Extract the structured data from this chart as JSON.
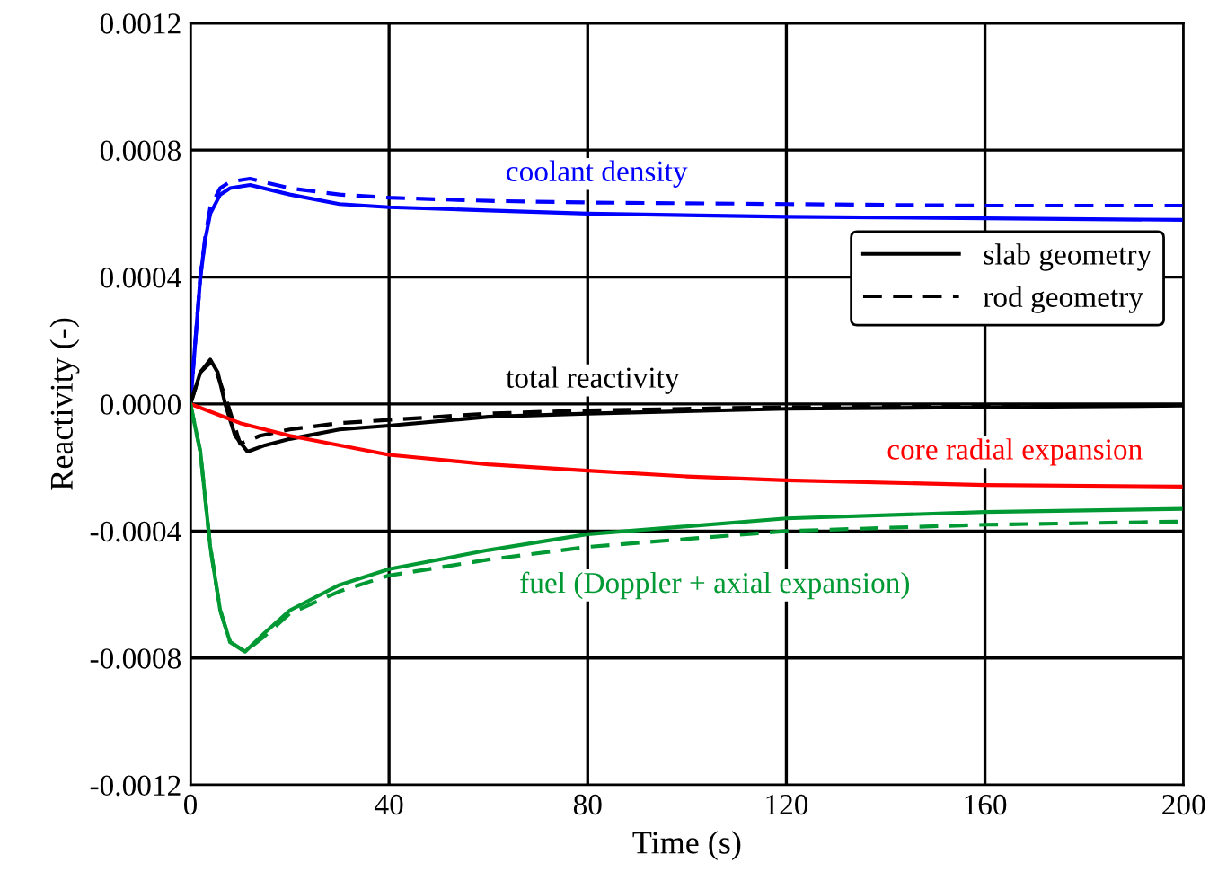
{
  "chart_data": {
    "type": "line",
    "xlabel": "Time (s)",
    "ylabel": "Reactivity (-)",
    "xlim": [
      0,
      200
    ],
    "xticks": [
      0,
      40,
      80,
      120,
      160,
      200
    ],
    "ylim": [
      -0.0012,
      0.0012
    ],
    "yticks": [
      {
        "value": -0.0012,
        "label": "-0.0012"
      },
      {
        "value": -0.0008,
        "label": "-0.0008"
      },
      {
        "value": -0.0004,
        "label": "-0.0004"
      },
      {
        "value": 0,
        "label": "0.0000"
      },
      {
        "value": 0.0004,
        "label": "0.0004"
      },
      {
        "value": 0.0008,
        "label": "0.0008"
      },
      {
        "value": 0.0012,
        "label": "0.0012"
      }
    ],
    "grid": true,
    "legend": "right",
    "marker": "none",
    "annotations": [
      "coolant density",
      "total reactivity",
      "core radial expansion",
      "fuel (Doppler + axial expansion)"
    ],
    "series": [
      {
        "color": "#0000ff",
        "line_style": "solid",
        "x": [
          0,
          1,
          2,
          3,
          4,
          6,
          8,
          12,
          20,
          30,
          40,
          60,
          80,
          120,
          160,
          200
        ],
        "values": [
          0,
          0.0002,
          0.0004,
          0.00052,
          0.0006,
          0.00066,
          0.00068,
          0.00069,
          0.00066,
          0.00063,
          0.00062,
          0.00061,
          0.0006,
          0.00059,
          0.000585,
          0.00058
        ]
      },
      {
        "color": "#0000ff",
        "line_style": "dashed",
        "x": [
          0,
          1,
          2,
          3,
          4,
          6,
          8,
          12,
          20,
          30,
          40,
          60,
          80,
          120,
          160,
          200
        ],
        "values": [
          0,
          0.0002,
          0.0004,
          0.00053,
          0.00062,
          0.00068,
          0.0007,
          0.00071,
          0.00068,
          0.00066,
          0.00065,
          0.00064,
          0.000635,
          0.00063,
          0.000625,
          0.000625
        ]
      },
      {
        "name": "slab geometry",
        "color": "#000000",
        "line_style": "solid",
        "x": [
          0,
          2,
          4,
          5.5,
          7,
          9,
          11.5,
          15,
          20,
          30,
          40,
          60,
          80,
          120,
          160,
          200
        ],
        "values": [
          0,
          0.0001,
          0.00014,
          0.0001,
          0,
          -0.0001,
          -0.00015,
          -0.00013,
          -0.00011,
          -8e-05,
          -6.8e-05,
          -4e-05,
          -3e-05,
          -1.5e-05,
          -1e-05,
          -5e-06
        ]
      },
      {
        "name": "rod geometry",
        "color": "#000000",
        "line_style": "dashed",
        "x": [
          0,
          2,
          4,
          5.5,
          7.5,
          10,
          14,
          20,
          30,
          40,
          60,
          80,
          120,
          160,
          200
        ],
        "values": [
          0,
          0.0001,
          0.00013,
          9e-05,
          0,
          -0.000125,
          -0.0001,
          -8e-05,
          -6e-05,
          -5e-05,
          -3e-05,
          -2e-05,
          -1e-05,
          -5e-06,
          -3e-06
        ]
      },
      {
        "color": "#ff0000",
        "line_style": "solid",
        "x": [
          0,
          5,
          10,
          20,
          40,
          60,
          80,
          100,
          120,
          160,
          200
        ],
        "values": [
          0,
          -3e-05,
          -6e-05,
          -0.0001,
          -0.00016,
          -0.00019,
          -0.00021,
          -0.000228,
          -0.00024,
          -0.000255,
          -0.00026
        ]
      },
      {
        "color": "#009933",
        "line_style": "solid",
        "x": [
          0,
          2,
          4,
          6,
          8,
          11,
          15,
          20,
          30,
          40,
          60,
          80,
          120,
          160,
          200
        ],
        "values": [
          0,
          -0.00015,
          -0.00045,
          -0.00065,
          -0.00075,
          -0.00078,
          -0.00072,
          -0.00065,
          -0.00057,
          -0.00052,
          -0.00046,
          -0.00041,
          -0.00036,
          -0.00034,
          -0.00033
        ]
      },
      {
        "color": "#009933",
        "line_style": "dashed",
        "x": [
          0,
          2,
          4,
          6,
          8,
          11,
          15,
          20,
          30,
          40,
          60,
          80,
          120,
          160,
          200
        ],
        "values": [
          0,
          -0.00015,
          -0.00045,
          -0.00065,
          -0.00075,
          -0.00078,
          -0.00073,
          -0.00066,
          -0.00059,
          -0.00054,
          -0.00049,
          -0.00045,
          -0.0004,
          -0.00038,
          -0.00037
        ]
      }
    ]
  }
}
